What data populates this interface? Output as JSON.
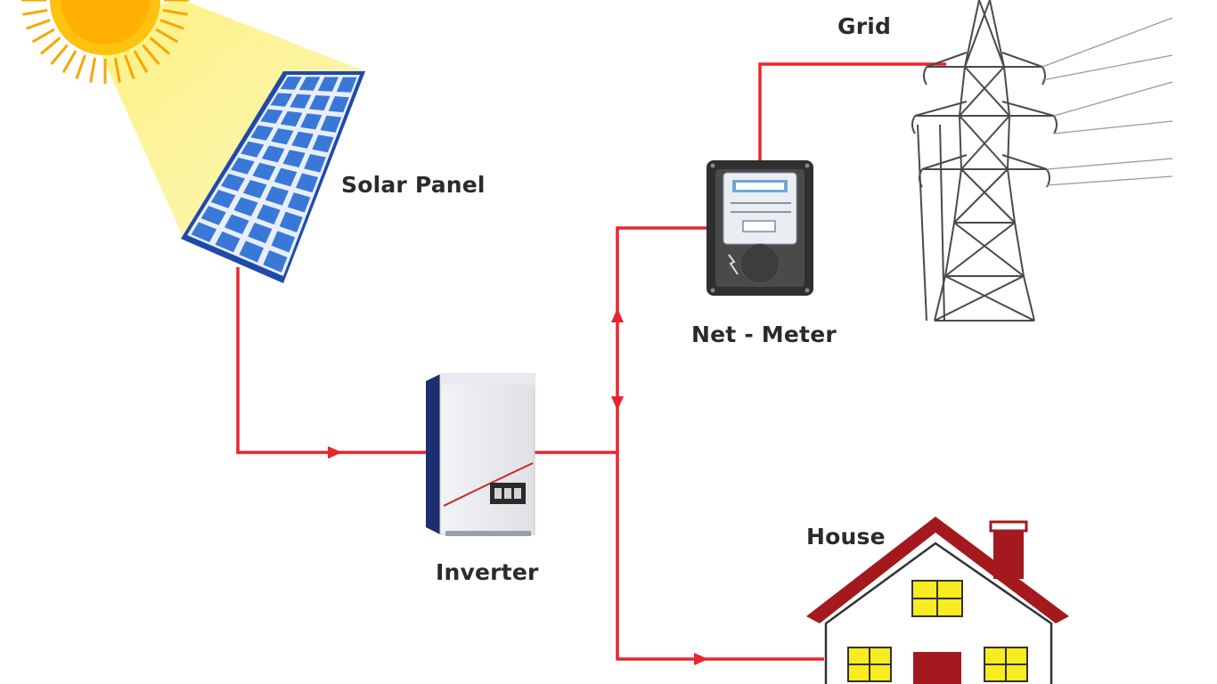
{
  "diagram": {
    "labels": {
      "solar_panel": "Solar Panel",
      "inverter": "Inverter",
      "net_meter": "Net - Meter",
      "grid": "Grid",
      "house": "House"
    },
    "colors": {
      "wire": "#e8262c",
      "sun": "#ffc20e",
      "sun_rays": "#f7a600",
      "sunbeam": "#fdf08a",
      "panel_cell": "#3a78d8",
      "panel_frame": "#1f4aa8",
      "house_roof": "#a3191e",
      "house_window": "#f7ec1f",
      "house_door": "#a3191e",
      "meter_body": "#2f2f2f",
      "tower": "#4a4a4a"
    },
    "icons": [
      "sun-icon",
      "solar-panel-icon",
      "inverter-icon",
      "net-meter-icon",
      "transmission-tower-icon",
      "house-icon"
    ]
  }
}
